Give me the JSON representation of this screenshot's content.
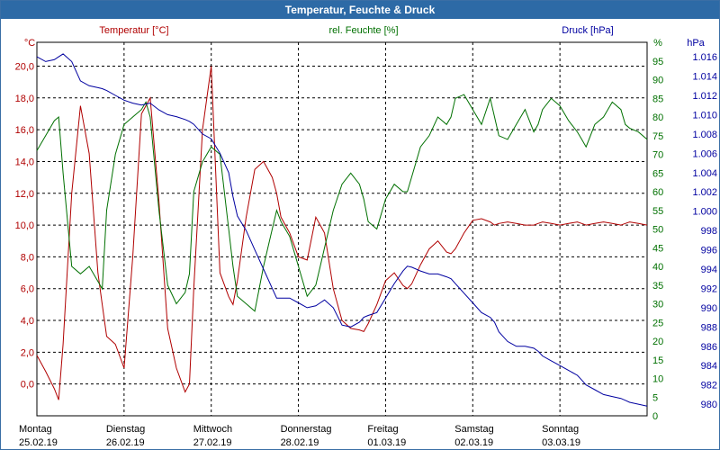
{
  "window": {
    "title": "Temperatur, Feuchte & Druck"
  },
  "colors": {
    "temperature": "#b00000",
    "humidity": "#007000",
    "pressure": "#0000a0",
    "grid": "#000000",
    "titlebar": "#2d6aa6"
  },
  "chart_data": {
    "type": "line",
    "title": "Temperatur, Feuchte & Druck",
    "grid": true,
    "x_days": [
      {
        "day": "Montag",
        "date": "25.02.19"
      },
      {
        "day": "Dienstag",
        "date": "26.02.19"
      },
      {
        "day": "Mittwoch",
        "date": "27.02.19"
      },
      {
        "day": "Donnerstag",
        "date": "28.02.19"
      },
      {
        "day": "Freitag",
        "date": "01.03.19"
      },
      {
        "day": "Samstag",
        "date": "02.03.19"
      },
      {
        "day": "Sonntag",
        "date": "03.03.19"
      }
    ],
    "x": [
      0,
      0.1,
      0.2,
      0.25,
      0.3,
      0.4,
      0.5,
      0.6,
      0.7,
      0.75,
      0.8,
      0.9,
      1.0,
      1.1,
      1.2,
      1.25,
      1.3,
      1.4,
      1.5,
      1.6,
      1.7,
      1.75,
      1.8,
      1.9,
      2.0,
      2.1,
      2.2,
      2.25,
      2.3,
      2.4,
      2.5,
      2.6,
      2.7,
      2.75,
      2.8,
      2.9,
      3.0,
      3.1,
      3.2,
      3.25,
      3.3,
      3.4,
      3.5,
      3.6,
      3.7,
      3.75,
      3.8,
      3.9,
      4.0,
      4.1,
      4.2,
      4.25,
      4.3,
      4.4,
      4.5,
      4.6,
      4.7,
      4.75,
      4.8,
      4.9,
      5.0,
      5.1,
      5.2,
      5.25,
      5.3,
      5.4,
      5.5,
      5.6,
      5.7,
      5.75,
      5.8,
      5.9,
      6.0,
      6.1,
      6.2,
      6.25,
      6.3,
      6.4,
      6.5,
      6.6,
      6.7,
      6.75,
      6.8,
      6.9,
      7.0
    ],
    "axes": {
      "temperature": {
        "label": "Temperatur [°C]",
        "unit": "°C",
        "min": -2,
        "max": 21.5,
        "ticks": [
          "20,0",
          "18,0",
          "16,0",
          "14,0",
          "12,0",
          "10,0",
          "8,0",
          "6,0",
          "4,0",
          "2,0",
          "0,0"
        ]
      },
      "humidity": {
        "label": "rel. Feuchte [%]",
        "unit": "%",
        "min": 0,
        "max": 100,
        "ticks": [
          "95",
          "90",
          "85",
          "80",
          "75",
          "70",
          "65",
          "60",
          "55",
          "50",
          "45",
          "40",
          "35",
          "30",
          "25",
          "20",
          "15",
          "10",
          "5",
          "0"
        ]
      },
      "pressure": {
        "label": "Druck [hPa]",
        "unit": "hPa",
        "min": 978.8,
        "max": 1017.5,
        "ticks": [
          "1.016",
          "1.014",
          "1.012",
          "1.010",
          "1.008",
          "1.006",
          "1.004",
          "1.002",
          "1.000",
          "998",
          "996",
          "994",
          "992",
          "990",
          "988",
          "986",
          "984",
          "982",
          "980"
        ]
      }
    },
    "series": [
      {
        "name": "Temperatur [°C]",
        "axis": "temperature",
        "values": [
          1.8,
          0.8,
          -0.3,
          -1.0,
          2.5,
          12.0,
          17.5,
          14.5,
          7.0,
          5.0,
          3.0,
          2.5,
          1.0,
          8.0,
          17.0,
          17.5,
          18.0,
          11.5,
          3.5,
          1.0,
          -0.5,
          0.0,
          6.0,
          16.0,
          20.0,
          7.0,
          5.5,
          5.0,
          6.5,
          10.5,
          13.5,
          14.0,
          13.0,
          12.0,
          10.5,
          9.5,
          8.0,
          7.8,
          10.5,
          10.0,
          9.5,
          6.0,
          4.0,
          3.5,
          3.4,
          3.3,
          3.8,
          5.0,
          6.5,
          7.0,
          6.2,
          6.0,
          6.3,
          7.5,
          8.5,
          9.0,
          8.3,
          8.2,
          8.5,
          9.5,
          10.3,
          10.4,
          10.2,
          10.0,
          10.1,
          10.2,
          10.1,
          10.0,
          10.0,
          10.1,
          10.2,
          10.1,
          10.0,
          10.1,
          10.2,
          10.1,
          10.0,
          10.1,
          10.2,
          10.1,
          10.0,
          10.1,
          10.2,
          10.1,
          10.0
        ]
      },
      {
        "name": "rel. Feuchte [%]",
        "axis": "humidity",
        "values": [
          71,
          75,
          79,
          80,
          65,
          40,
          38,
          40,
          36,
          34,
          55,
          70,
          78,
          80,
          82,
          84,
          80,
          55,
          35,
          30,
          33,
          38,
          60,
          68,
          72,
          70,
          50,
          40,
          32,
          30,
          28,
          40,
          50,
          55,
          52,
          48,
          40,
          32,
          35,
          40,
          45,
          55,
          62,
          65,
          62,
          58,
          52,
          50,
          58,
          62,
          60,
          60,
          64,
          72,
          75,
          80,
          78,
          80,
          85,
          86,
          82,
          78,
          85,
          80,
          75,
          74,
          78,
          82,
          76,
          78,
          82,
          85,
          83,
          79,
          76,
          74,
          72,
          78,
          80,
          84,
          82,
          78,
          77,
          76,
          74
        ]
      },
      {
        "name": "Druck [hPa]",
        "axis": "pressure",
        "values": [
          1016.0,
          1015.5,
          1015.7,
          1016.0,
          1016.3,
          1015.5,
          1013.5,
          1013.0,
          1012.8,
          1012.7,
          1012.5,
          1012.0,
          1011.5,
          1011.2,
          1011.0,
          1011.1,
          1011.2,
          1010.5,
          1010.0,
          1009.8,
          1009.5,
          1009.3,
          1009.0,
          1008.0,
          1007.5,
          1006.0,
          1004.0,
          1001.5,
          999.5,
          998.0,
          996.0,
          994.0,
          992.0,
          991.0,
          991.0,
          991.0,
          990.5,
          990.0,
          990.2,
          990.5,
          990.8,
          990.0,
          988.2,
          988.0,
          988.5,
          989.0,
          989.2,
          989.5,
          991.0,
          992.5,
          993.8,
          994.3,
          994.2,
          993.8,
          993.5,
          993.5,
          993.2,
          993.0,
          992.5,
          991.5,
          990.5,
          989.5,
          989.0,
          988.5,
          987.5,
          986.5,
          986.0,
          986.0,
          985.8,
          985.5,
          985.0,
          984.5,
          984.0,
          983.5,
          983.0,
          982.5,
          982.0,
          981.5,
          981.0,
          980.8,
          980.6,
          980.4,
          980.2,
          980.0,
          979.8
        ]
      }
    ]
  }
}
